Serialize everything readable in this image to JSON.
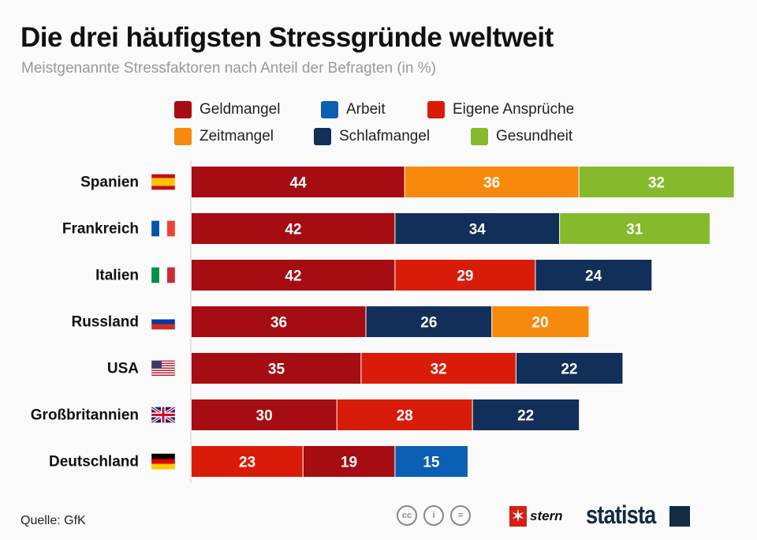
{
  "title": "Die drei häufigsten Stressgründe weltweit",
  "subtitle": "Meistgenannte Stressfaktoren nach Anteil der Befragten (in %)",
  "source": "Quelle: GfK",
  "logos": {
    "stern": "stern",
    "statista": "statista",
    "license": "cc-by-nd"
  },
  "colors": {
    "Geldmangel": "#a50d12",
    "Arbeit": "#0b5fb4",
    "Eigene Ansprüche": "#d91c0a",
    "Zeitmangel": "#f7890c",
    "Schlafmangel": "#112f59",
    "Gesundheit": "#86b92b"
  },
  "legend": [
    "Geldmangel",
    "Arbeit",
    "Eigene Ansprüche",
    "Zeitmangel",
    "Schlafmangel",
    "Gesundheit"
  ],
  "chart_data": {
    "type": "bar",
    "orientation": "horizontal-stacked",
    "categories": [
      "Spanien",
      "Frankreich",
      "Italien",
      "Russland",
      "USA",
      "Großbritannien",
      "Deutschland"
    ],
    "flags": [
      "es",
      "fr",
      "it",
      "ru",
      "us",
      "gb",
      "de"
    ],
    "rows": [
      [
        {
          "s": "Geldmangel",
          "v": 44
        },
        {
          "s": "Zeitmangel",
          "v": 36
        },
        {
          "s": "Gesundheit",
          "v": 32
        }
      ],
      [
        {
          "s": "Geldmangel",
          "v": 42
        },
        {
          "s": "Schlafmangel",
          "v": 34
        },
        {
          "s": "Gesundheit",
          "v": 31
        }
      ],
      [
        {
          "s": "Geldmangel",
          "v": 42
        },
        {
          "s": "Eigene Ansprüche",
          "v": 29
        },
        {
          "s": "Schlafmangel",
          "v": 24
        }
      ],
      [
        {
          "s": "Geldmangel",
          "v": 36
        },
        {
          "s": "Schlafmangel",
          "v": 26
        },
        {
          "s": "Zeitmangel",
          "v": 20
        }
      ],
      [
        {
          "s": "Geldmangel",
          "v": 35
        },
        {
          "s": "Eigene Ansprüche",
          "v": 32
        },
        {
          "s": "Schlafmangel",
          "v": 22
        }
      ],
      [
        {
          "s": "Geldmangel",
          "v": 30
        },
        {
          "s": "Eigene Ansprüche",
          "v": 28
        },
        {
          "s": "Schlafmangel",
          "v": 22
        }
      ],
      [
        {
          "s": "Eigene Ansprüche",
          "v": 23
        },
        {
          "s": "Geldmangel",
          "v": 19
        },
        {
          "s": "Arbeit",
          "v": 15
        }
      ]
    ],
    "legend_position": "top",
    "grid": false
  }
}
